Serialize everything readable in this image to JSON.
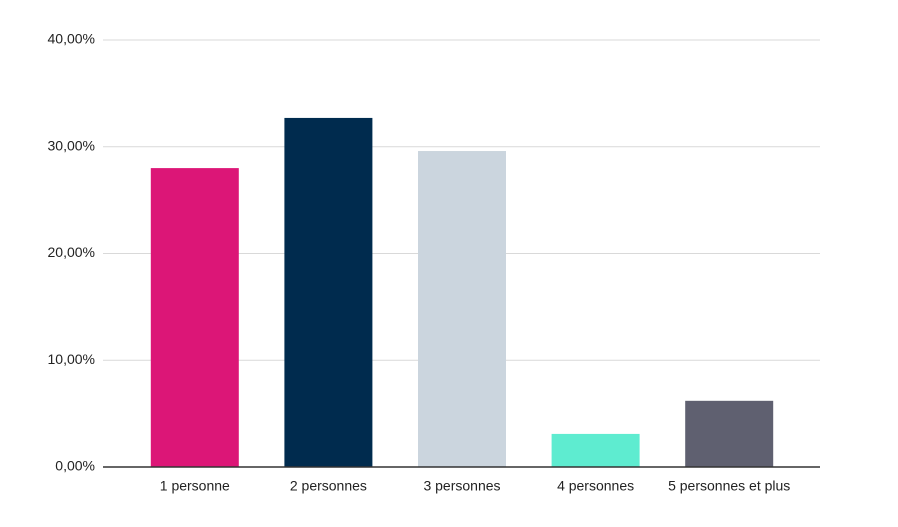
{
  "chart_data": {
    "type": "bar",
    "categories": [
      "1 personne",
      "2 personnes",
      "3 personnes",
      "4 personnes",
      "5 personnes et plus"
    ],
    "values": [
      28.0,
      32.7,
      29.6,
      3.1,
      6.2
    ],
    "colors": [
      "#dc1677",
      "#002b4e",
      "#cbd5de",
      "#5eecd0",
      "#5f6070"
    ],
    "ylim": [
      0,
      40
    ],
    "yticks": [
      {
        "value": 0,
        "label": "0,00%"
      },
      {
        "value": 10,
        "label": "10,00%"
      },
      {
        "value": 20,
        "label": "20,00%"
      },
      {
        "value": 30,
        "label": "30,00%"
      },
      {
        "value": 40,
        "label": "40,00%"
      }
    ],
    "grid": true
  }
}
